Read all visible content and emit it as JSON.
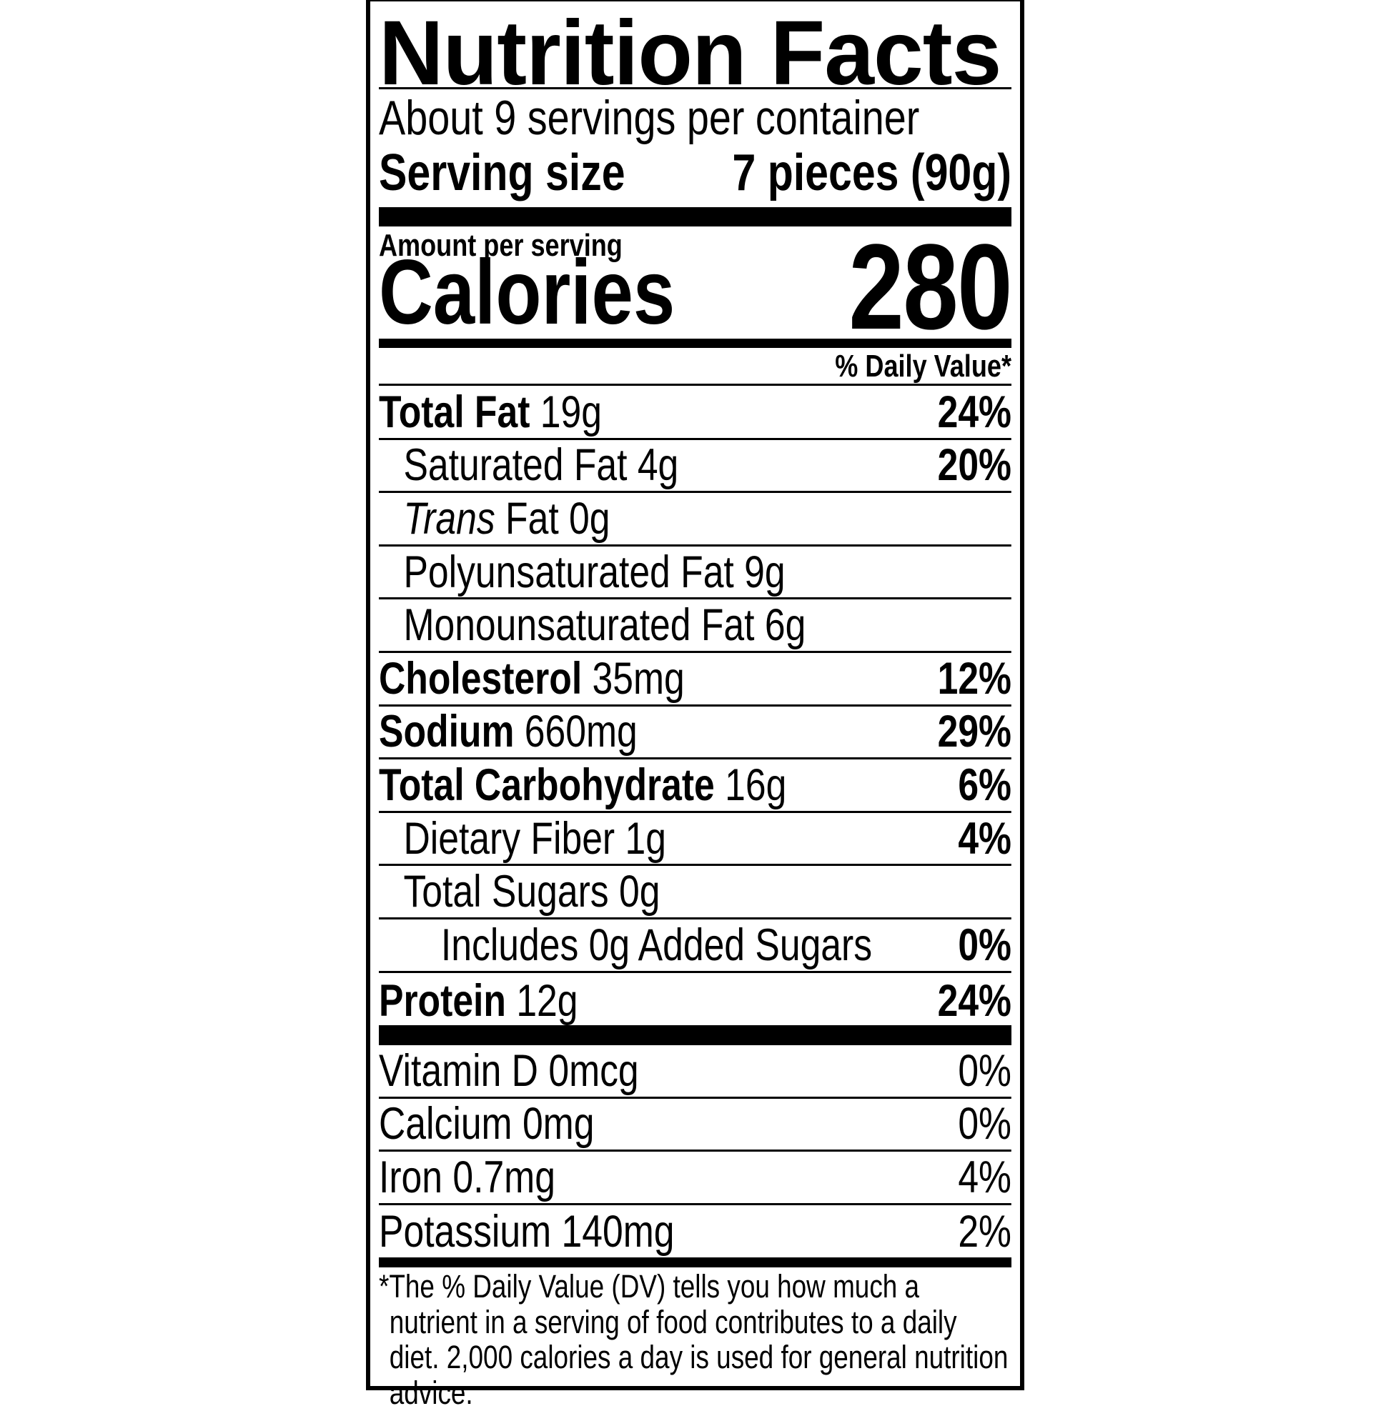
{
  "title": "Nutrition Facts",
  "servings_per_container": "About 9 servings per container",
  "serving_size": {
    "label": "Serving size",
    "value": "7 pieces (90g)"
  },
  "amount_per_serving": "Amount per serving",
  "calories": {
    "label": "Calories",
    "value": "280"
  },
  "daily_value_header": "% Daily Value*",
  "nutrients": [
    {
      "name": "Total Fat",
      "amount": "19g",
      "dv": "24%"
    },
    {
      "name": "Saturated Fat",
      "amount": "4g",
      "dv": "20%"
    },
    {
      "name_italic": "Trans",
      "name": "Fat",
      "amount": "0g",
      "dv": ""
    },
    {
      "name": "Polyunsaturated Fat",
      "amount": "9g",
      "dv": ""
    },
    {
      "name": "Monounsaturated Fat",
      "amount": "6g",
      "dv": ""
    },
    {
      "name": "Cholesterol",
      "amount": "35mg",
      "dv": "12%"
    },
    {
      "name": "Sodium",
      "amount": "660mg",
      "dv": "29%"
    },
    {
      "name": "Total Carbohydrate",
      "amount": "16g",
      "dv": "6%"
    },
    {
      "name": "Dietary Fiber",
      "amount": "1g",
      "dv": "4%"
    },
    {
      "name": "Total Sugars",
      "amount": "0g",
      "dv": ""
    },
    {
      "name": "Includes 0g Added Sugars",
      "amount": "",
      "dv": "0%"
    },
    {
      "name": "Protein",
      "amount": "12g",
      "dv": "24%"
    }
  ],
  "vitamins": [
    {
      "text": "Vitamin D 0mcg",
      "dv": "0%"
    },
    {
      "text": "Calcium 0mg",
      "dv": "0%"
    },
    {
      "text": "Iron 0.7mg",
      "dv": "4%"
    },
    {
      "text": "Potassium 140mg",
      "dv": "2%"
    }
  ],
  "footnote": "*The % Daily Value (DV) tells you how much a nutrient in a serving of food contributes to a daily diet. 2,000 calories a day is used for general nutrition advice."
}
